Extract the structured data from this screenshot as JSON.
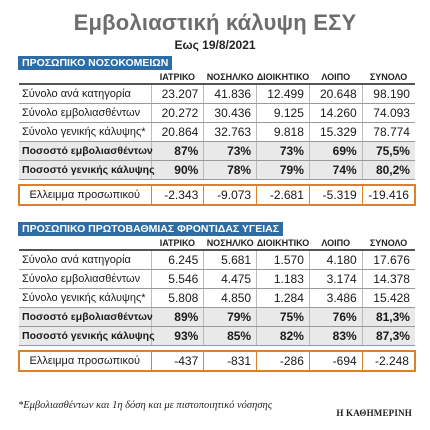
{
  "title": "Εμβολιαστική κάλυψη ΕΣΥ",
  "subtitle": "Εως 19/8/2021",
  "columns": [
    "ΙΑΤΡΙΚΟ",
    "ΝΟΣΗΛ/ΚΟ",
    "ΔΙΟΙΚΗΤΙΚΟ",
    "ΛΟΙΠΟ",
    "ΣΥΝΟΛΟ"
  ],
  "hospital": {
    "section_title": "ΠΡΟΣΩΠΙΚΟ ΝΟΣΟΚΟΜΕΙΩΝ",
    "rows": [
      {
        "label": "Σύνολο ανά κατηγορία",
        "values": [
          "23.207",
          "41.836",
          "12.499",
          "20.648",
          "98.190"
        ]
      },
      {
        "label": "Σύνολο εμβολιασθέντων",
        "values": [
          "20.272",
          "30.436",
          "9.125",
          "14.260",
          "74.093"
        ]
      },
      {
        "label": "Σύνολο γενικής κάλυψης*",
        "values": [
          "20.864",
          "32.763",
          "9.818",
          "15.329",
          "78.774"
        ]
      },
      {
        "label": "Ποσοστό εμβολιασθέντων",
        "values": [
          "87%",
          "73%",
          "73%",
          "69%",
          "75,5%"
        ]
      },
      {
        "label": "Ποσοστό γενικής κάλυψης",
        "values": [
          "90%",
          "78%",
          "79%",
          "74%",
          "80,2%"
        ]
      },
      {
        "label": "Ελλειμμα προσωπικού",
        "values": [
          "-2.343",
          "-9.073",
          "-2.681",
          "-5.319",
          "-19.416"
        ]
      }
    ]
  },
  "primary": {
    "section_title": "ΠΡΟΣΩΠΙΚΟ ΠΡΩΤΟΒΑΘΜΙΑΣ ΦΡΟΝΤΙΔΑΣ ΥΓΕΙΑΣ",
    "rows": [
      {
        "label": "Σύνολο ανά κατηγορία",
        "values": [
          "6.245",
          "5.681",
          "1.570",
          "4.180",
          "17.676"
        ]
      },
      {
        "label": "Σύνολο εμβολιασθέντων",
        "values": [
          "5.546",
          "4.475",
          "1.183",
          "3.174",
          "14.378"
        ]
      },
      {
        "label": "Σύνολο γενικής κάλυψης*",
        "values": [
          "5.808",
          "4.850",
          "1.284",
          "3.486",
          "15.428"
        ]
      },
      {
        "label": "Ποσοστό εμβολιασθέντων",
        "values": [
          "89%",
          "79%",
          "75%",
          "76%",
          "81,3%"
        ]
      },
      {
        "label": "Ποσοστό γενικής κάλυψης",
        "values": [
          "93%",
          "85%",
          "82%",
          "83%",
          "87,3%"
        ]
      },
      {
        "label": "Ελλειμμα προσωπικού",
        "values": [
          "-437",
          "-831",
          "-286",
          "-694",
          "-2.248"
        ]
      }
    ]
  },
  "footnote": "*Εμβολιασθέντων και 1η δόση και με πιστοποιητικό νόσησης",
  "brand": "Η ΚΑΘΗΜΕΡΙΝΗ",
  "colors": {
    "section_bar": "#2e6da4",
    "deficit_outline": "#d9822b",
    "shade": "#e9e9e9",
    "title": "#6d6d6d"
  }
}
